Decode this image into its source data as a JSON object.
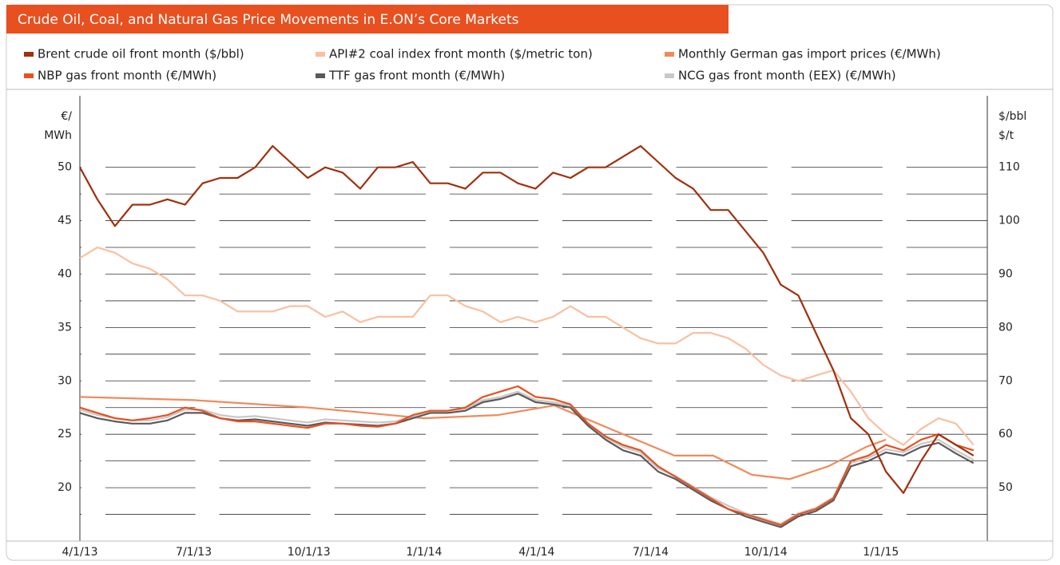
{
  "chart_data": {
    "type": "line",
    "title": "Crude Oil, Coal, and Natural Gas Price Movements in E.ON’s Core Markets",
    "y_label": [
      "€/",
      "MWh"
    ],
    "y2_label": [
      "$/bbl",
      "$/t"
    ],
    "x": [
      "2013-04-01",
      "2013-04-15",
      "2013-04-29",
      "2013-05-13",
      "2013-05-27",
      "2013-06-10",
      "2013-06-24",
      "2013-07-08",
      "2013-07-22",
      "2013-08-05",
      "2013-08-19",
      "2013-09-02",
      "2013-09-16",
      "2013-09-30",
      "2013-10-14",
      "2013-10-28",
      "2013-11-11",
      "2013-11-25",
      "2013-12-09",
      "2013-12-23",
      "2014-01-06",
      "2014-01-20",
      "2014-02-03",
      "2014-02-17",
      "2014-03-03",
      "2014-03-17",
      "2014-03-31",
      "2014-04-14",
      "2014-04-28",
      "2014-05-12",
      "2014-05-26",
      "2014-06-09",
      "2014-06-23",
      "2014-07-07",
      "2014-07-21",
      "2014-08-04",
      "2014-08-18",
      "2014-09-01",
      "2014-09-15",
      "2014-09-29",
      "2014-10-13",
      "2014-10-27",
      "2014-11-10",
      "2014-11-24",
      "2014-12-08",
      "2014-12-22",
      "2015-01-05",
      "2015-01-19",
      "2015-02-02",
      "2015-02-16",
      "2015-03-02",
      "2015-03-16"
    ],
    "xlim": [
      "2013-04-01",
      "2015-03-27"
    ],
    "xticks": [
      {
        "value": "2013-04-01",
        "label": "4/1/13"
      },
      {
        "value": "2013-07-01",
        "label": "7/1/13"
      },
      {
        "value": "2013-10-01",
        "label": "10/1/13"
      },
      {
        "value": "2014-01-01",
        "label": "1/1/14"
      },
      {
        "value": "2014-04-01",
        "label": "4/1/14"
      },
      {
        "value": "2014-07-01",
        "label": "7/1/14"
      },
      {
        "value": "2014-10-01",
        "label": "10/1/14"
      },
      {
        "value": "2015-01-01",
        "label": "1/1/15"
      }
    ],
    "ylim": [
      15,
      56.7
    ],
    "yticks": [
      20,
      25,
      30,
      35,
      40,
      45,
      50
    ],
    "minor_yticks": [
      17.5,
      22.5,
      27.5,
      32.5,
      37.5,
      42.5,
      47.5
    ],
    "y2lim": [
      40,
      123.4
    ],
    "y2ticks": [
      50,
      60,
      70,
      80,
      90,
      100,
      110
    ],
    "grid": true,
    "series": [
      {
        "name": "Brent crude oil front month ($/bbl)",
        "color": "#a0300e",
        "axis": "y2",
        "values": [
          110,
          104,
          99,
          103,
          103,
          104,
          103,
          107,
          108,
          108,
          110,
          114,
          111,
          108,
          110,
          109,
          106,
          110,
          110,
          111,
          107,
          107,
          106,
          109,
          109,
          107,
          106,
          109,
          108,
          110,
          110,
          112,
          114,
          111,
          108,
          106,
          102,
          102,
          98,
          94,
          88,
          86,
          79,
          72,
          63,
          60,
          53,
          49,
          55,
          60,
          58,
          56
        ]
      },
      {
        "name": "API#2 coal index front month ($/metric ton)",
        "color": "#f9c0a0",
        "axis": "y2",
        "values": [
          93,
          95,
          94,
          92,
          91,
          89,
          86,
          86,
          85,
          83,
          83,
          83,
          84,
          84,
          82,
          83,
          81,
          82,
          82,
          82,
          86,
          86,
          84,
          83,
          81,
          82,
          81,
          82,
          84,
          82,
          82,
          80,
          78,
          77,
          77,
          79,
          79,
          78,
          76,
          73,
          71,
          70,
          71,
          72,
          68,
          63,
          60,
          58,
          61,
          63,
          62,
          58
        ]
      },
      {
        "name": "Monthly German gas import prices (€/MWh)",
        "color": "#f08a5a",
        "x": [
          "2013-04-01",
          "2013-07-01",
          "2013-10-01",
          "2014-01-01",
          "2014-03-01",
          "2014-04-15",
          "2014-07-20",
          "2014-08-20",
          "2014-09-20",
          "2014-10-20",
          "2014-11-20",
          "2014-12-20",
          "2015-01-05"
        ],
        "values": [
          28.5,
          28.2,
          27.5,
          26.5,
          26.8,
          27.7,
          23.0,
          23.0,
          21.2,
          20.8,
          22.0,
          23.8,
          24.5
        ]
      },
      {
        "name": "NBP gas front month (€/MWh)",
        "color": "#e8501f",
        "values": [
          27.5,
          27,
          26.5,
          26.3,
          26.5,
          26.8,
          27.5,
          27.2,
          26.5,
          26.2,
          26.2,
          26,
          25.8,
          25.6,
          26,
          26,
          25.8,
          25.7,
          26,
          26.8,
          27.2,
          27.2,
          27.5,
          28.5,
          29,
          29.5,
          28.5,
          28.3,
          27.8,
          26,
          24.8,
          24,
          23.5,
          22,
          21,
          20,
          19,
          18,
          17.5,
          17,
          16.5,
          17.5,
          18,
          19,
          22.5,
          23,
          24,
          23.5,
          24.5,
          25,
          24,
          23.5
        ]
      },
      {
        "name": "TTF gas front month (€/MWh)",
        "color": "#5a5a5a",
        "values": [
          27,
          26.5,
          26.2,
          26,
          26,
          26.3,
          27,
          27,
          26.5,
          26.3,
          26.4,
          26.2,
          26,
          25.8,
          26.1,
          26,
          25.9,
          25.8,
          26,
          26.5,
          27,
          27,
          27.2,
          28,
          28.3,
          28.8,
          28,
          27.8,
          27.5,
          25.8,
          24.5,
          23.5,
          23,
          21.5,
          20.8,
          19.8,
          18.8,
          18,
          17.3,
          16.8,
          16.3,
          17.3,
          17.8,
          18.8,
          22,
          22.5,
          23.3,
          23,
          23.8,
          24.2,
          23.2,
          22.3
        ]
      },
      {
        "name": "NCG gas front month (EEX) (€/MWh)",
        "color": "#c8c8c8",
        "values": [
          27.3,
          26.8,
          26.5,
          26.3,
          26.3,
          26.6,
          27.3,
          27.3,
          26.8,
          26.6,
          26.7,
          26.5,
          26.3,
          26.1,
          26.4,
          26.3,
          26.2,
          26.1,
          26.2,
          26.7,
          27.2,
          27.2,
          27.4,
          28.2,
          28.5,
          29,
          28.2,
          28,
          27.7,
          26,
          24.7,
          23.8,
          23.3,
          21.8,
          21.1,
          20.1,
          19.1,
          18.3,
          17.6,
          17.1,
          16.6,
          17.6,
          18.1,
          19.1,
          22.3,
          22.8,
          23.6,
          23.3,
          24.1,
          24.5,
          23.5,
          22.6
        ]
      }
    ]
  }
}
